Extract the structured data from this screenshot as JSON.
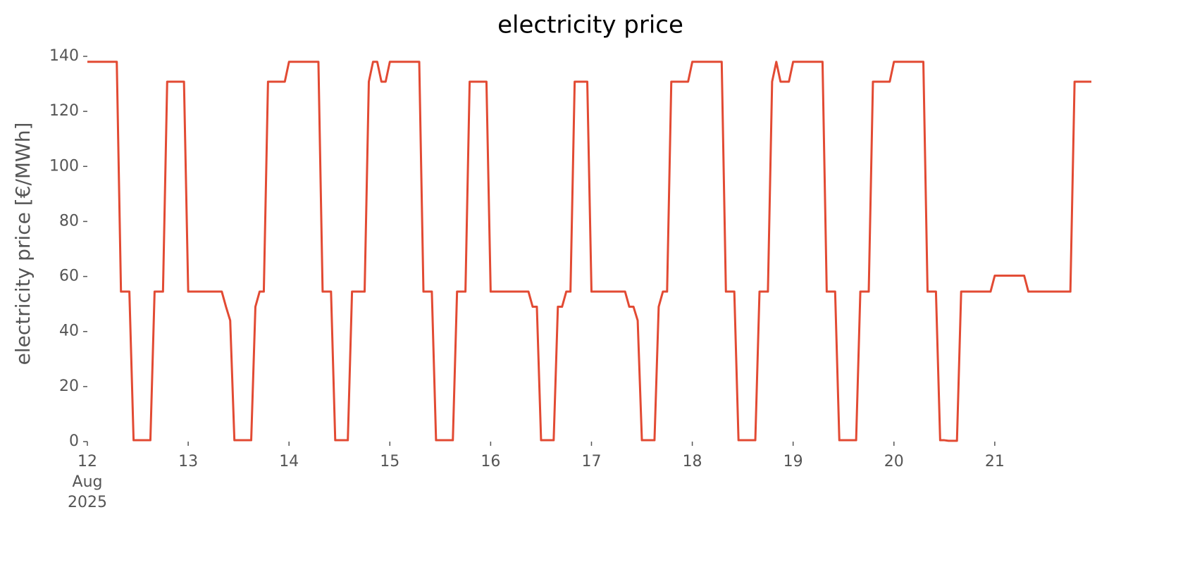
{
  "chart_data": {
    "type": "line",
    "title": "electricity price",
    "ylabel": "electricity price [€/MWh]",
    "x": [
      "2025-08-12T00:00",
      "2025-08-12T01:00",
      "2025-08-12T02:00",
      "2025-08-12T03:00",
      "2025-08-12T04:00",
      "2025-08-12T05:00",
      "2025-08-12T06:00",
      "2025-08-12T07:00",
      "2025-08-12T08:00",
      "2025-08-12T09:00",
      "2025-08-12T10:00",
      "2025-08-12T11:00",
      "2025-08-12T12:00",
      "2025-08-12T13:00",
      "2025-08-12T14:00",
      "2025-08-12T15:00",
      "2025-08-12T16:00",
      "2025-08-12T17:00",
      "2025-08-12T18:00",
      "2025-08-12T19:00",
      "2025-08-12T20:00",
      "2025-08-12T21:00",
      "2025-08-12T22:00",
      "2025-08-12T23:00",
      "2025-08-13T00:00",
      "2025-08-13T01:00",
      "2025-08-13T02:00",
      "2025-08-13T03:00",
      "2025-08-13T04:00",
      "2025-08-13T05:00",
      "2025-08-13T06:00",
      "2025-08-13T07:00",
      "2025-08-13T08:00",
      "2025-08-13T09:00",
      "2025-08-13T10:00",
      "2025-08-13T11:00",
      "2025-08-13T12:00",
      "2025-08-13T13:00",
      "2025-08-13T14:00",
      "2025-08-13T15:00",
      "2025-08-13T16:00",
      "2025-08-13T17:00",
      "2025-08-13T18:00",
      "2025-08-13T19:00",
      "2025-08-13T20:00",
      "2025-08-13T21:00",
      "2025-08-13T22:00",
      "2025-08-13T23:00",
      "2025-08-14T00:00",
      "2025-08-14T01:00",
      "2025-08-14T02:00",
      "2025-08-14T03:00",
      "2025-08-14T04:00",
      "2025-08-14T05:00",
      "2025-08-14T06:00",
      "2025-08-14T07:00",
      "2025-08-14T08:00",
      "2025-08-14T09:00",
      "2025-08-14T10:00",
      "2025-08-14T11:00",
      "2025-08-14T12:00",
      "2025-08-14T13:00",
      "2025-08-14T14:00",
      "2025-08-14T15:00",
      "2025-08-14T16:00",
      "2025-08-14T17:00",
      "2025-08-14T18:00",
      "2025-08-14T19:00",
      "2025-08-14T20:00",
      "2025-08-14T21:00",
      "2025-08-14T22:00",
      "2025-08-14T23:00",
      "2025-08-15T00:00",
      "2025-08-15T01:00",
      "2025-08-15T02:00",
      "2025-08-15T03:00",
      "2025-08-15T04:00",
      "2025-08-15T05:00",
      "2025-08-15T06:00",
      "2025-08-15T07:00",
      "2025-08-15T08:00",
      "2025-08-15T09:00",
      "2025-08-15T10:00",
      "2025-08-15T11:00",
      "2025-08-15T12:00",
      "2025-08-15T13:00",
      "2025-08-15T14:00",
      "2025-08-15T15:00",
      "2025-08-15T16:00",
      "2025-08-15T17:00",
      "2025-08-15T18:00",
      "2025-08-15T19:00",
      "2025-08-15T20:00",
      "2025-08-15T21:00",
      "2025-08-15T22:00",
      "2025-08-15T23:00",
      "2025-08-16T00:00",
      "2025-08-16T01:00",
      "2025-08-16T02:00",
      "2025-08-16T03:00",
      "2025-08-16T04:00",
      "2025-08-16T05:00",
      "2025-08-16T06:00",
      "2025-08-16T07:00",
      "2025-08-16T08:00",
      "2025-08-16T09:00",
      "2025-08-16T10:00",
      "2025-08-16T11:00",
      "2025-08-16T12:00",
      "2025-08-16T13:00",
      "2025-08-16T14:00",
      "2025-08-16T15:00",
      "2025-08-16T16:00",
      "2025-08-16T17:00",
      "2025-08-16T18:00",
      "2025-08-16T19:00",
      "2025-08-16T20:00",
      "2025-08-16T21:00",
      "2025-08-16T22:00",
      "2025-08-16T23:00",
      "2025-08-17T00:00",
      "2025-08-17T01:00",
      "2025-08-17T02:00",
      "2025-08-17T03:00",
      "2025-08-17T04:00",
      "2025-08-17T05:00",
      "2025-08-17T06:00",
      "2025-08-17T07:00",
      "2025-08-17T08:00",
      "2025-08-17T09:00",
      "2025-08-17T10:00",
      "2025-08-17T11:00",
      "2025-08-17T12:00",
      "2025-08-17T13:00",
      "2025-08-17T14:00",
      "2025-08-17T15:00",
      "2025-08-17T16:00",
      "2025-08-17T17:00",
      "2025-08-17T18:00",
      "2025-08-17T19:00",
      "2025-08-17T20:00",
      "2025-08-17T21:00",
      "2025-08-17T22:00",
      "2025-08-17T23:00",
      "2025-08-18T00:00",
      "2025-08-18T01:00",
      "2025-08-18T02:00",
      "2025-08-18T03:00",
      "2025-08-18T04:00",
      "2025-08-18T05:00",
      "2025-08-18T06:00",
      "2025-08-18T07:00",
      "2025-08-18T08:00",
      "2025-08-18T09:00",
      "2025-08-18T10:00",
      "2025-08-18T11:00",
      "2025-08-18T12:00",
      "2025-08-18T13:00",
      "2025-08-18T14:00",
      "2025-08-18T15:00",
      "2025-08-18T16:00",
      "2025-08-18T17:00",
      "2025-08-18T18:00",
      "2025-08-18T19:00",
      "2025-08-18T20:00",
      "2025-08-18T21:00",
      "2025-08-18T22:00",
      "2025-08-18T23:00",
      "2025-08-19T00:00",
      "2025-08-19T01:00",
      "2025-08-19T02:00",
      "2025-08-19T03:00",
      "2025-08-19T04:00",
      "2025-08-19T05:00",
      "2025-08-19T06:00",
      "2025-08-19T07:00",
      "2025-08-19T08:00",
      "2025-08-19T09:00",
      "2025-08-19T10:00",
      "2025-08-19T11:00",
      "2025-08-19T12:00",
      "2025-08-19T13:00",
      "2025-08-19T14:00",
      "2025-08-19T15:00",
      "2025-08-19T16:00",
      "2025-08-19T17:00",
      "2025-08-19T18:00",
      "2025-08-19T19:00",
      "2025-08-19T20:00",
      "2025-08-19T21:00",
      "2025-08-19T22:00",
      "2025-08-19T23:00",
      "2025-08-20T00:00",
      "2025-08-20T01:00",
      "2025-08-20T02:00",
      "2025-08-20T03:00",
      "2025-08-20T04:00",
      "2025-08-20T05:00",
      "2025-08-20T06:00",
      "2025-08-20T07:00",
      "2025-08-20T08:00",
      "2025-08-20T09:00",
      "2025-08-20T10:00",
      "2025-08-20T11:00",
      "2025-08-20T12:00",
      "2025-08-20T13:00",
      "2025-08-20T14:00",
      "2025-08-20T15:00",
      "2025-08-20T16:00",
      "2025-08-20T17:00",
      "2025-08-20T18:00",
      "2025-08-20T19:00",
      "2025-08-20T20:00",
      "2025-08-20T21:00",
      "2025-08-20T22:00",
      "2025-08-20T23:00",
      "2025-08-21T00:00",
      "2025-08-21T01:00",
      "2025-08-21T02:00",
      "2025-08-21T03:00",
      "2025-08-21T04:00",
      "2025-08-21T05:00",
      "2025-08-21T06:00",
      "2025-08-21T07:00",
      "2025-08-21T08:00",
      "2025-08-21T09:00",
      "2025-08-21T10:00",
      "2025-08-21T11:00",
      "2025-08-21T12:00",
      "2025-08-21T13:00",
      "2025-08-21T14:00",
      "2025-08-21T15:00",
      "2025-08-21T16:00",
      "2025-08-21T17:00",
      "2025-08-21T18:00",
      "2025-08-21T19:00",
      "2025-08-21T20:00",
      "2025-08-21T21:00",
      "2025-08-21T22:00",
      "2025-08-21T23:00"
    ],
    "series": [
      {
        "name": "electricity price",
        "color": "#e24a33",
        "values": [
          138,
          138,
          138,
          138,
          138,
          138,
          138,
          138,
          54.5,
          54.5,
          54.5,
          0.5,
          0.5,
          0.5,
          0.5,
          0.5,
          54.5,
          54.5,
          54.5,
          130.8,
          130.8,
          130.8,
          130.8,
          130.8,
          54.5,
          54.5,
          54.5,
          54.5,
          54.5,
          54.5,
          54.5,
          54.5,
          54.5,
          49,
          44,
          0.5,
          0.5,
          0.5,
          0.5,
          0.5,
          49,
          54.5,
          54.5,
          130.8,
          130.8,
          130.8,
          130.8,
          130.8,
          138,
          138,
          138,
          138,
          138,
          138,
          138,
          138,
          54.5,
          54.5,
          54.5,
          0.5,
          0.5,
          0.5,
          0.5,
          54.5,
          54.5,
          54.5,
          54.5,
          130.8,
          138,
          138,
          130.8,
          130.8,
          138,
          138,
          138,
          138,
          138,
          138,
          138,
          138,
          54.5,
          54.5,
          54.5,
          0.5,
          0.5,
          0.5,
          0.5,
          0.5,
          54.5,
          54.5,
          54.5,
          130.8,
          130.8,
          130.8,
          130.8,
          130.8,
          54.5,
          54.5,
          54.5,
          54.5,
          54.5,
          54.5,
          54.5,
          54.5,
          54.5,
          54.5,
          49,
          49,
          0.5,
          0.5,
          0.5,
          0.5,
          49,
          49,
          54.5,
          54.5,
          130.8,
          130.8,
          130.8,
          130.8,
          54.5,
          54.5,
          54.5,
          54.5,
          54.5,
          54.5,
          54.5,
          54.5,
          54.5,
          49,
          49,
          44,
          0.5,
          0.5,
          0.5,
          0.5,
          49,
          54.5,
          54.5,
          130.8,
          130.8,
          130.8,
          130.8,
          130.8,
          138,
          138,
          138,
          138,
          138,
          138,
          138,
          138,
          54.5,
          54.5,
          54.5,
          0.5,
          0.5,
          0.5,
          0.5,
          0.5,
          54.5,
          54.5,
          54.5,
          130.8,
          138,
          130.8,
          130.8,
          130.8,
          138,
          138,
          138,
          138,
          138,
          138,
          138,
          138,
          54.5,
          54.5,
          54.5,
          0.5,
          0.5,
          0.5,
          0.5,
          0.5,
          54.5,
          54.5,
          54.5,
          130.8,
          130.8,
          130.8,
          130.8,
          130.8,
          138,
          138,
          138,
          138,
          138,
          138,
          138,
          138,
          54.5,
          54.5,
          54.5,
          0.5,
          0.5,
          0.3,
          0.3,
          0.3,
          54.5,
          54.5,
          54.5,
          54.5,
          54.5,
          54.5,
          54.5,
          54.5,
          60.3,
          60.3,
          60.3,
          60.3,
          60.3,
          60.3,
          60.3,
          60.3,
          54.5,
          54.5,
          54.5,
          54.5,
          54.5,
          54.5,
          54.5,
          54.5,
          54.5,
          54.5,
          54.5,
          130.8,
          130.8,
          130.8,
          130.8,
          130.8
        ]
      }
    ],
    "xlim": [
      "2025-08-12T00:00",
      "2025-08-21T23:00"
    ],
    "xticks": [
      {
        "value": "2025-08-12T00:00",
        "label": "12\nAug\n2025"
      },
      {
        "value": "2025-08-13T00:00",
        "label": "13"
      },
      {
        "value": "2025-08-14T00:00",
        "label": "14"
      },
      {
        "value": "2025-08-15T00:00",
        "label": "15"
      },
      {
        "value": "2025-08-16T00:00",
        "label": "16"
      },
      {
        "value": "2025-08-17T00:00",
        "label": "17"
      },
      {
        "value": "2025-08-18T00:00",
        "label": "18"
      },
      {
        "value": "2025-08-19T00:00",
        "label": "19"
      },
      {
        "value": "2025-08-20T00:00",
        "label": "20"
      },
      {
        "value": "2025-08-21T00:00",
        "label": "21"
      }
    ],
    "ylim": [
      0,
      140
    ],
    "yticks": [
      0,
      20,
      40,
      60,
      80,
      100,
      120,
      140
    ],
    "grid": false
  }
}
